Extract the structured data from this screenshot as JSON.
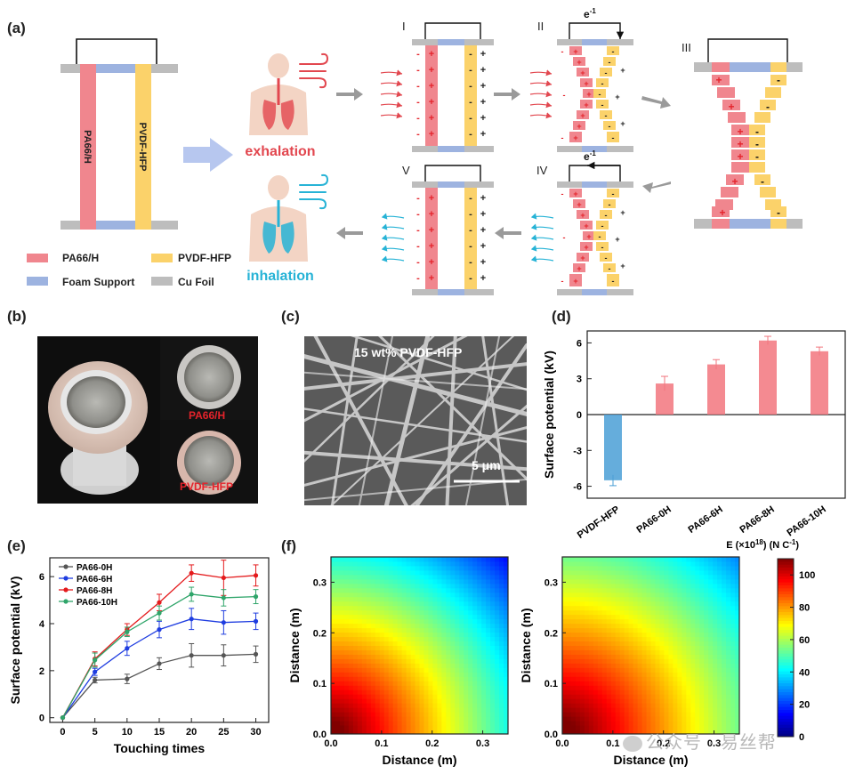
{
  "panels": {
    "a": "(a)",
    "b": "(b)",
    "c": "(c)",
    "d": "(d)",
    "e": "(e)",
    "f": "(f)"
  },
  "panel_a": {
    "layer_left": "PA66/H",
    "layer_right": "PVDF-HFP",
    "exhalation": "exhalation",
    "inhalation": "inhalation",
    "stage_labels": [
      "I",
      "II",
      "III",
      "IV",
      "V"
    ],
    "electron": "e",
    "electron_sup": "-1",
    "legend": [
      "PA66/H",
      "PVDF-HFP",
      "Foam Support",
      "Cu Foil"
    ],
    "colors": {
      "pa66": "#f0868e",
      "pvdf": "#fbd26a",
      "foam": "#9db3e0",
      "cu": "#bdbdbd",
      "exhale": "#e2474f",
      "inhale": "#27b3d6"
    }
  },
  "panel_b": {
    "label_top": "PA66/H",
    "label_bottom": "PVDF-HFP"
  },
  "panel_c": {
    "caption": "15 wt% PVDF-HFP",
    "scale_bar": "5 μm"
  },
  "panel_d": {
    "chart_data": {
      "type": "bar",
      "categories": [
        "PVDF-HFP",
        "PA66-0H",
        "PA66-6H",
        "PA66-8H",
        "PA66-10H"
      ],
      "values": [
        -5.5,
        2.6,
        4.2,
        6.2,
        5.3
      ],
      "errors": [
        0.45,
        0.6,
        0.4,
        0.35,
        0.35
      ],
      "ylabel": "Surface potential (kV)",
      "ylim": [
        -7,
        7
      ],
      "yticks": [
        -6,
        -3,
        0,
        3,
        6
      ],
      "colors": {
        "negative": "#4a9fd6",
        "positive": "#f2767e"
      }
    }
  },
  "panel_e": {
    "chart_data": {
      "type": "line",
      "x": [
        0,
        5,
        10,
        15,
        20,
        25,
        30
      ],
      "xlabel": "Touching times",
      "ylabel": "Surface potential (kV)",
      "xlim": [
        -2,
        32
      ],
      "ylim": [
        -0.2,
        6.8
      ],
      "xticks": [
        0,
        5,
        10,
        15,
        20,
        25,
        30
      ],
      "yticks": [
        0,
        2,
        4,
        6
      ],
      "series": [
        {
          "name": "PA66-0H",
          "color": "#555555",
          "values": [
            0,
            1.6,
            1.65,
            2.3,
            2.65,
            2.65,
            2.7
          ],
          "errors": [
            0,
            0.12,
            0.2,
            0.25,
            0.5,
            0.45,
            0.35
          ]
        },
        {
          "name": "PA66-6H",
          "color": "#1f3de0",
          "values": [
            0,
            1.95,
            2.95,
            3.75,
            4.2,
            4.05,
            4.1
          ],
          "errors": [
            0,
            0.15,
            0.3,
            0.35,
            0.45,
            0.5,
            0.35
          ]
        },
        {
          "name": "PA66-8H",
          "color": "#e41a1c",
          "values": [
            0,
            2.5,
            3.75,
            4.9,
            6.15,
            5.95,
            6.05
          ],
          "errors": [
            0,
            0.3,
            0.25,
            0.35,
            0.35,
            0.75,
            0.45
          ]
        },
        {
          "name": "PA66-10H",
          "color": "#2fa56a",
          "values": [
            0,
            2.45,
            3.65,
            4.45,
            5.25,
            5.1,
            5.15
          ],
          "errors": [
            0,
            0.3,
            0.2,
            0.3,
            0.3,
            0.35,
            0.3
          ]
        }
      ]
    }
  },
  "panel_f": {
    "chart_data": {
      "type": "heatmap",
      "xlabel": "Distance (m)",
      "ylabel": "Distance (m)",
      "xlim": [
        0,
        0.35
      ],
      "ylim": [
        0,
        0.35
      ],
      "xticks": [
        "0.0",
        "0.1",
        "0.2",
        "0.3"
      ],
      "yticks": [
        "0.0",
        "0.1",
        "0.2",
        "0.3"
      ],
      "colorbar_title": "E (×10",
      "colorbar_exp": "18",
      "colorbar_unit": ") (N C",
      "colorbar_unit_exp": "-1",
      "colorbar_close": ")",
      "colorbar_ticks": [
        0,
        20,
        40,
        60,
        80,
        100
      ],
      "colorbar_range": [
        0,
        110
      ],
      "maps": [
        {
          "name": "left",
          "peak": 110,
          "falloff": 0.38
        },
        {
          "name": "right",
          "peak": 110,
          "falloff": 0.44
        }
      ]
    }
  },
  "watermark": {
    "text": "公众号 · 易丝帮"
  }
}
